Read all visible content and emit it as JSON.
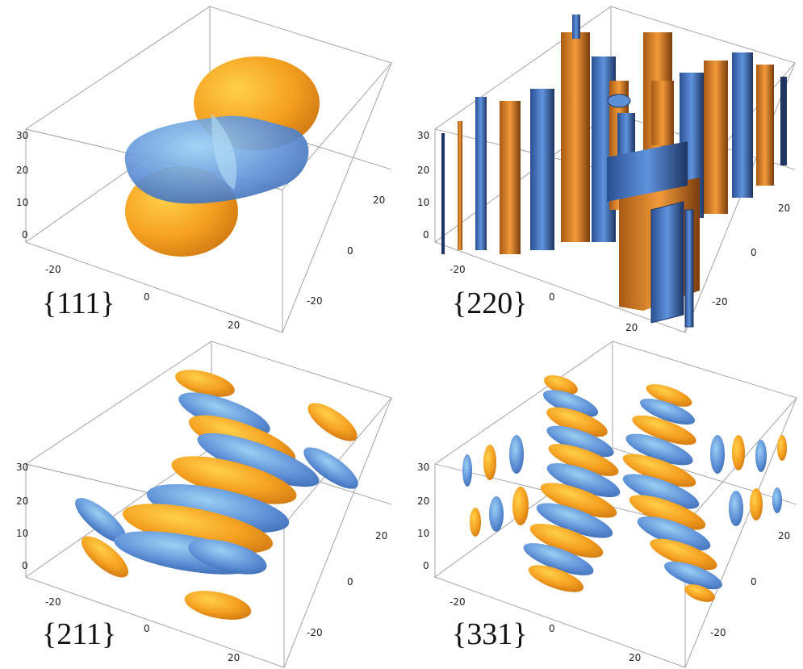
{
  "colors": {
    "orange": "#f0921e",
    "blue": "#5d8fd6",
    "dark_orange": "#8a4a10",
    "dark_blue": "#1e3564"
  },
  "panels": [
    {
      "label": "{111}",
      "z_ticks": [
        "30",
        "20",
        "10",
        "0"
      ],
      "x_ticks": [
        "-20",
        "0",
        "20"
      ],
      "y_ticks": [
        "20",
        "0",
        "-20"
      ]
    },
    {
      "label": "{220}",
      "z_ticks": [
        "30",
        "20",
        "10",
        "0"
      ],
      "x_ticks": [
        "-20",
        "0",
        "20"
      ],
      "y_ticks": [
        "20",
        "0",
        "-20"
      ]
    },
    {
      "label": "{211}",
      "z_ticks": [
        "30",
        "20",
        "10",
        "0"
      ],
      "x_ticks": [
        "-20",
        "0",
        "20"
      ],
      "y_ticks": [
        "20",
        "0",
        "-20"
      ]
    },
    {
      "label": "{331}",
      "z_ticks": [
        "30",
        "20",
        "10",
        "0"
      ],
      "x_ticks": [
        "-20",
        "0",
        "20"
      ],
      "y_ticks": [
        "20",
        "0",
        "-20"
      ]
    }
  ]
}
